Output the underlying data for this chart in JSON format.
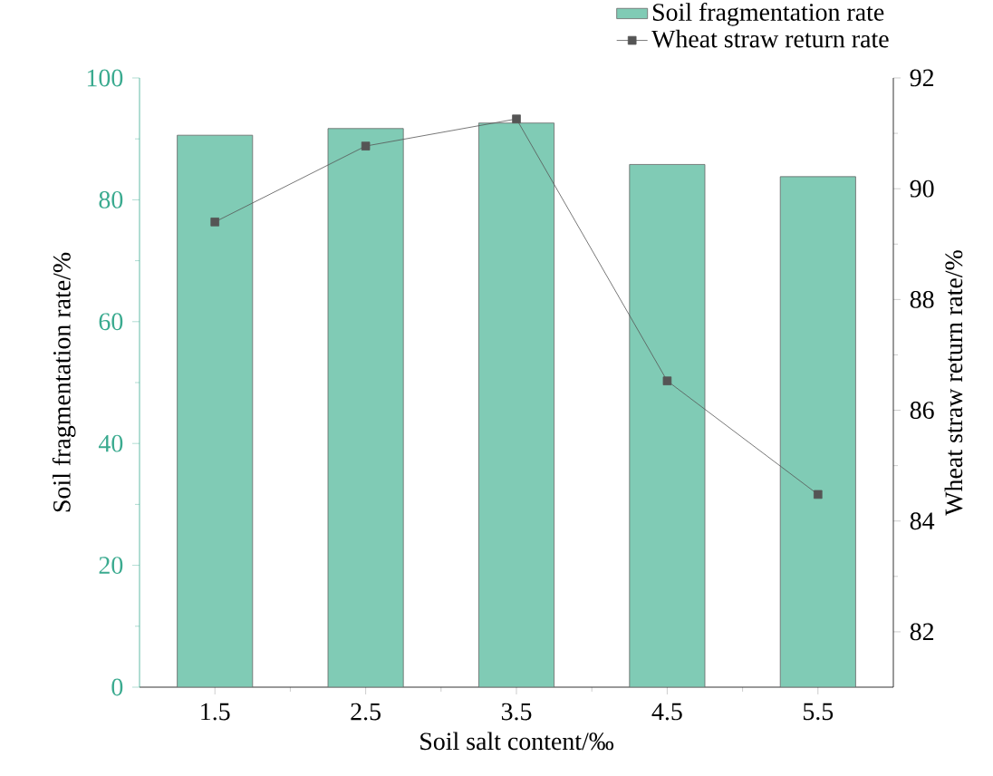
{
  "chart_data": {
    "type": "bar",
    "categories": [
      "1.5",
      "2.5",
      "3.5",
      "4.5",
      "5.5"
    ],
    "xlabel": "Soil salt content/‰",
    "ylabel": "Soil fragmentation rate/%",
    "y2label": "Wheat straw return rate/%",
    "ylim": [
      0,
      100
    ],
    "yticks": [
      0,
      20,
      40,
      60,
      80,
      100
    ],
    "y2lim": [
      81,
      92
    ],
    "y2ticks": [
      82,
      84,
      86,
      88,
      90,
      92
    ],
    "series": [
      {
        "name": "Soil fragmentation rate",
        "color": "#80cbb5",
        "values": [
          90.6,
          91.7,
          92.6,
          85.8,
          83.8
        ]
      },
      {
        "name": "Wheat straw return rate",
        "type": "line",
        "axis": "y2",
        "color": "#555555",
        "values": [
          89.4,
          90.77,
          91.26,
          86.53,
          84.48
        ]
      }
    ],
    "marker": "square",
    "legend": "top right"
  }
}
